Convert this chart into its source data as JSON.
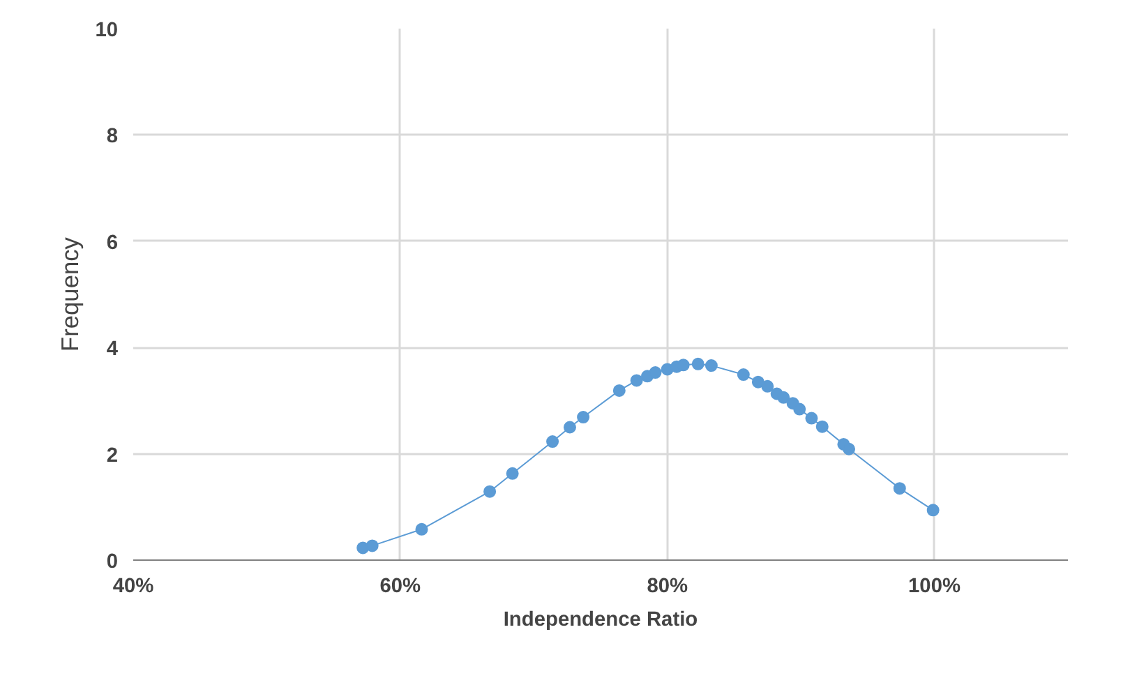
{
  "chart_data": {
    "type": "line",
    "xlabel": "Independence Ratio",
    "ylabel": "Frequency",
    "x": [
      0.572,
      0.579,
      0.616,
      0.667,
      0.684,
      0.714,
      0.727,
      0.737,
      0.764,
      0.777,
      0.785,
      0.791,
      0.8,
      0.807,
      0.812,
      0.823,
      0.833,
      0.857,
      0.868,
      0.875,
      0.882,
      0.887,
      0.894,
      0.899,
      0.908,
      0.916,
      0.932,
      0.936,
      0.974,
      0.999
    ],
    "series": [
      {
        "color": "#5b9bd5",
        "values": [
          0.23,
          0.27,
          0.58,
          1.29,
          1.63,
          2.23,
          2.5,
          2.69,
          3.19,
          3.38,
          3.46,
          3.53,
          3.59,
          3.64,
          3.67,
          3.69,
          3.66,
          3.49,
          3.35,
          3.27,
          3.13,
          3.06,
          2.95,
          2.84,
          2.67,
          2.51,
          2.18,
          2.09,
          1.35,
          0.94
        ]
      }
    ],
    "xlim": [
      0.4,
      1.1
    ],
    "xticks": [
      {
        "value": 0.4,
        "label": "40%"
      },
      {
        "value": 0.6,
        "label": "60%"
      },
      {
        "value": 0.8,
        "label": "80%"
      },
      {
        "value": 1.0,
        "label": "100%"
      }
    ],
    "ylim": [
      0,
      10
    ],
    "yticks": [
      0,
      2,
      4,
      6,
      8,
      10
    ],
    "grid": true,
    "marker": "circle",
    "line_style": "solid"
  }
}
